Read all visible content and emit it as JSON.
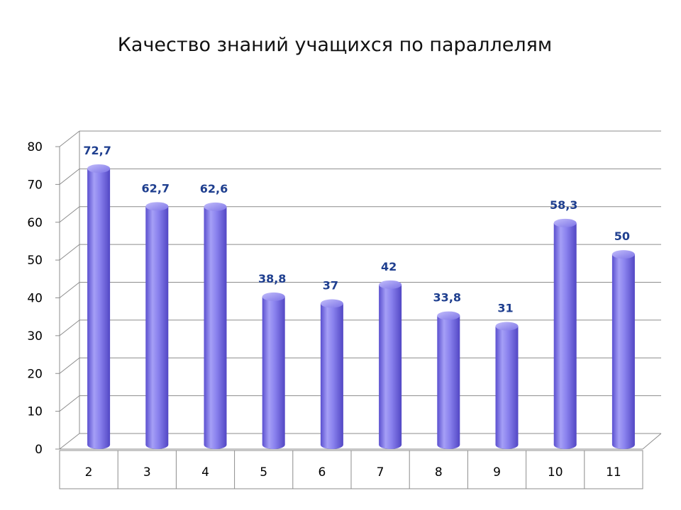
{
  "chart_data": {
    "type": "bar",
    "title": "Качество знаний учащихся по параллелям",
    "categories": [
      "2",
      "3",
      "4",
      "5",
      "6",
      "7",
      "8",
      "9",
      "10",
      "11"
    ],
    "values": [
      72.7,
      62.7,
      62.6,
      38.8,
      37,
      42,
      33.8,
      31,
      58.3,
      50
    ],
    "value_labels": [
      "72,7",
      "62,7",
      "62,6",
      "38,8",
      "37",
      "42",
      "33,8",
      "31",
      "58,3",
      "50"
    ],
    "y_ticks": [
      "0",
      "10",
      "20",
      "30",
      "40",
      "50",
      "60",
      "70",
      "80"
    ],
    "ylim": [
      0,
      80
    ],
    "grid": true,
    "legend": false,
    "style": "3d-cylinder",
    "bar_color": "#8d85ee"
  }
}
